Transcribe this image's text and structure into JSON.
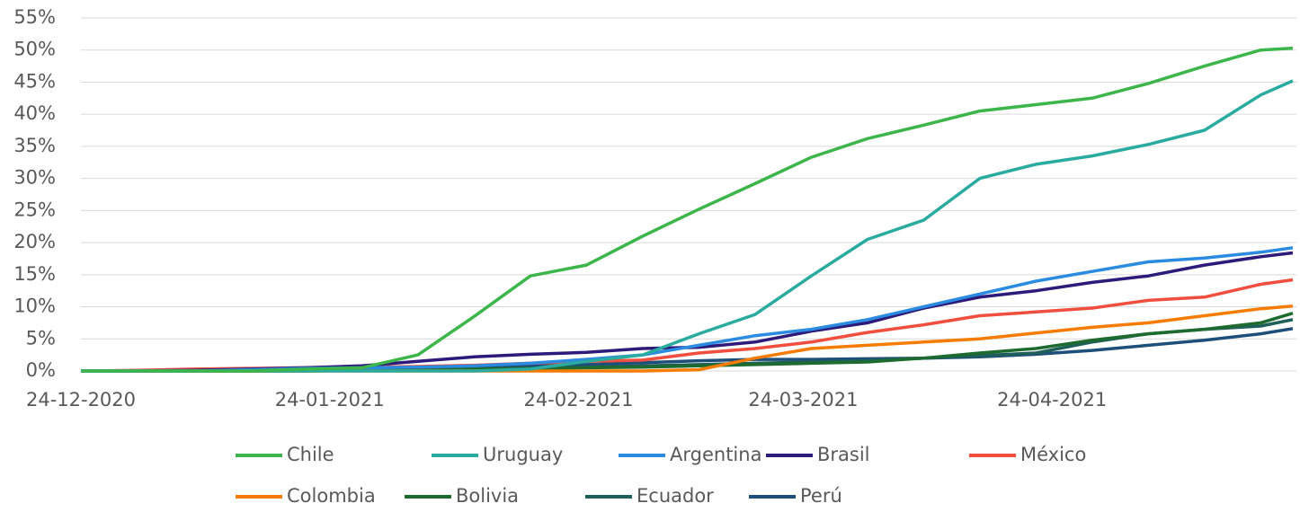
{
  "chart_data": {
    "type": "line",
    "x": [
      "24-12-2020",
      "31-12-2020",
      "07-01-2021",
      "14-01-2021",
      "21-01-2021",
      "28-01-2021",
      "04-02-2021",
      "11-02-2021",
      "18-02-2021",
      "25-02-2021",
      "04-03-2021",
      "11-03-2021",
      "18-03-2021",
      "25-03-2021",
      "01-04-2021",
      "08-04-2021",
      "15-04-2021",
      "22-04-2021",
      "29-04-2021",
      "06-05-2021",
      "13-05-2021",
      "20-05-2021",
      "24-05-2021"
    ],
    "xlim": [
      "24-12-2020",
      "24-05-2021"
    ],
    "xticks": [
      "24-12-2020",
      "24-01-2021",
      "24-02-2021",
      "24-03-2021",
      "24-04-2021"
    ],
    "ylim": [
      0,
      55
    ],
    "yticks": [
      {
        "value": 0,
        "label": "0%"
      },
      {
        "value": 5,
        "label": "5%"
      },
      {
        "value": 10,
        "label": "10%"
      },
      {
        "value": 15,
        "label": "15%"
      },
      {
        "value": 20,
        "label": "20%"
      },
      {
        "value": 25,
        "label": "25%"
      },
      {
        "value": 30,
        "label": "30%"
      },
      {
        "value": 35,
        "label": "35%"
      },
      {
        "value": 40,
        "label": "40%"
      },
      {
        "value": 45,
        "label": "45%"
      },
      {
        "value": 50,
        "label": "50%"
      },
      {
        "value": 55,
        "label": "55%"
      }
    ],
    "grid": true,
    "series": [
      {
        "name": "Chile",
        "color": "#3cb54a",
        "values": [
          0,
          0,
          0,
          0,
          0.3,
          0.5,
          2.5,
          8.5,
          14.8,
          16.5,
          21,
          25.2,
          29.2,
          33.3,
          36.2,
          38.3,
          40.5,
          41.5,
          42.5,
          44.8,
          47.5,
          50,
          50.3
        ]
      },
      {
        "name": "Uruguay",
        "color": "#2aaba0",
        "values": [
          0,
          0,
          0,
          0,
          0,
          0,
          0,
          0,
          0.3,
          1.5,
          2.5,
          5.8,
          8.8,
          14.8,
          20.5,
          23.5,
          30,
          32.2,
          33.5,
          35.3,
          37.5,
          43,
          45.2
        ]
      },
      {
        "name": "Argentina",
        "color": "#2a8be0",
        "values": [
          0,
          0,
          0,
          0.2,
          0.4,
          0.5,
          0.6,
          0.8,
          1.2,
          1.8,
          2.5,
          4,
          5.5,
          6.5,
          8,
          10,
          12,
          14,
          15.5,
          17,
          17.6,
          18.5,
          19.2
        ]
      },
      {
        "name": "Brasil",
        "color": "#2e1a7a",
        "values": [
          0,
          0,
          0.1,
          0.3,
          0.5,
          0.8,
          1.5,
          2.2,
          2.6,
          2.9,
          3.5,
          3.7,
          4.5,
          6.2,
          7.5,
          9.8,
          11.5,
          12.5,
          13.8,
          14.8,
          16.5,
          17.8,
          18.4
        ]
      },
      {
        "name": "México",
        "color": "#f04e3e",
        "values": [
          0,
          0.1,
          0.3,
          0.4,
          0.5,
          0.6,
          0.7,
          0.9,
          1.2,
          1.5,
          1.7,
          2.8,
          3.5,
          4.5,
          6,
          7.2,
          8.6,
          9.2,
          9.8,
          11,
          11.5,
          13.5,
          14.2
        ]
      },
      {
        "name": "Colombia",
        "color": "#f57c00",
        "values": [
          0,
          0,
          0,
          0,
          0,
          0,
          0,
          0,
          0,
          0,
          0,
          0.2,
          2,
          3.5,
          4,
          4.5,
          5,
          5.9,
          6.8,
          7.5,
          8.6,
          9.7,
          10.1
        ]
      },
      {
        "name": "Bolivia",
        "color": "#1e6b30",
        "values": [
          0,
          0,
          0,
          0,
          0,
          0.1,
          0.2,
          0.3,
          0.4,
          0.5,
          0.6,
          0.8,
          1,
          1.2,
          1.4,
          2,
          2.8,
          3.5,
          4.8,
          5.8,
          6.5,
          7.5,
          9
        ]
      },
      {
        "name": "Ecuador",
        "color": "#1f5f5a",
        "values": [
          0,
          0,
          0,
          0,
          0,
          0.1,
          0.2,
          0.3,
          0.4,
          0.6,
          0.8,
          1,
          1.2,
          1.4,
          1.6,
          2,
          2.4,
          2.8,
          4.5,
          5.8,
          6.5,
          7,
          8
        ]
      },
      {
        "name": "Perú",
        "color": "#1e4f7a",
        "values": [
          0,
          0,
          0,
          0,
          0.1,
          0.2,
          0.4,
          0.6,
          0.8,
          1,
          1.3,
          1.6,
          1.8,
          1.8,
          1.9,
          2,
          2.2,
          2.6,
          3.2,
          4,
          4.8,
          5.8,
          6.6
        ]
      }
    ]
  }
}
